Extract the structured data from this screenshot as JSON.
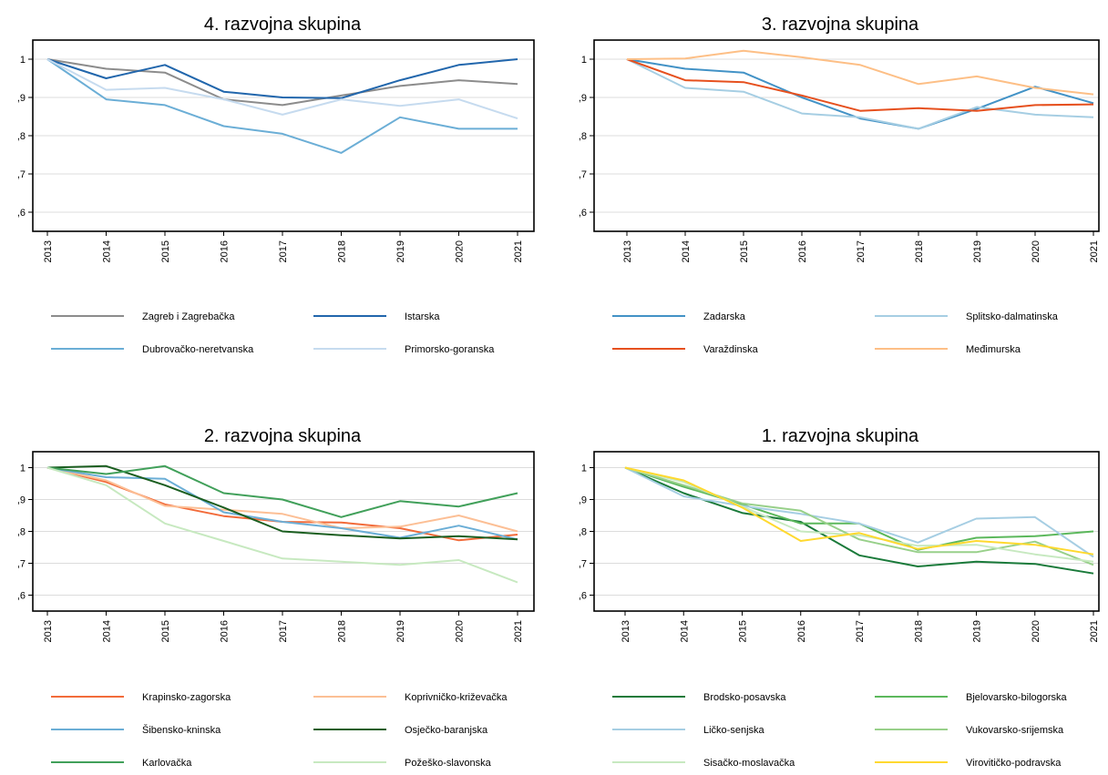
{
  "chart_data": [
    {
      "type": "line",
      "title": "4. razvojna skupina",
      "x": [
        "2013",
        "2014",
        "2015",
        "2016",
        "2017",
        "2018",
        "2019",
        "2020",
        "2021"
      ],
      "ylim": [
        0.55,
        1.05
      ],
      "yticks": [
        1,
        0.9,
        0.8,
        0.7,
        0.6
      ],
      "ytick_labels": [
        "1",
        ",9",
        ",8",
        ",7",
        ",6"
      ],
      "grid": true,
      "legend_position": "bottom",
      "series": [
        {
          "name": "Zagreb i Zagrebačka",
          "color": "#8c8c8c",
          "values": [
            1,
            0.975,
            0.965,
            0.895,
            0.88,
            0.905,
            0.93,
            0.945,
            0.935
          ]
        },
        {
          "name": "Istarska",
          "color": "#2166ac",
          "values": [
            1,
            0.95,
            0.985,
            0.915,
            0.9,
            0.898,
            0.945,
            0.985,
            1.0
          ]
        },
        {
          "name": "Dubrovačko-neretvanska",
          "color": "#6baed6",
          "values": [
            1,
            0.895,
            0.88,
            0.825,
            0.805,
            0.755,
            0.848,
            0.818,
            0.818
          ]
        },
        {
          "name": "Primorsko-goranska",
          "color": "#c6dbef",
          "values": [
            1,
            0.92,
            0.925,
            0.895,
            0.855,
            0.895,
            0.878,
            0.895,
            0.845
          ]
        }
      ]
    },
    {
      "type": "line",
      "title": "3. razvojna skupina",
      "x": [
        "2013",
        "2014",
        "2015",
        "2016",
        "2017",
        "2018",
        "2019",
        "2020",
        "2021"
      ],
      "ylim": [
        0.55,
        1.05
      ],
      "yticks": [
        1,
        0.9,
        0.8,
        0.7,
        0.6
      ],
      "ytick_labels": [
        "1",
        ",9",
        ",8",
        ",7",
        ",6"
      ],
      "grid": true,
      "legend_position": "bottom",
      "series": [
        {
          "name": "Zadarska",
          "color": "#4292c6",
          "values": [
            1,
            0.975,
            0.965,
            0.9,
            0.845,
            0.818,
            0.87,
            0.928,
            0.885
          ]
        },
        {
          "name": "Splitsko-dalmatinska",
          "color": "#a6cee3",
          "values": [
            1,
            0.925,
            0.915,
            0.858,
            0.848,
            0.818,
            0.875,
            0.855,
            0.848
          ]
        },
        {
          "name": "Varaždinska",
          "color": "#e6501e",
          "values": [
            1,
            0.945,
            0.94,
            0.905,
            0.865,
            0.872,
            0.865,
            0.88,
            0.882
          ]
        },
        {
          "name": "Međimurska",
          "color": "#fdbf86",
          "values": [
            1,
            1.002,
            1.022,
            1.005,
            0.985,
            0.935,
            0.955,
            0.925,
            0.908
          ]
        }
      ]
    },
    {
      "type": "line",
      "title": "2. razvojna skupina",
      "x": [
        "2013",
        "2014",
        "2015",
        "2016",
        "2017",
        "2018",
        "2019",
        "2020",
        "2021"
      ],
      "ylim": [
        0.55,
        1.05
      ],
      "yticks": [
        1,
        0.9,
        0.8,
        0.7,
        0.6
      ],
      "ytick_labels": [
        "1",
        ",9",
        ",8",
        ",7",
        ",6"
      ],
      "grid": true,
      "legend_position": "bottom",
      "series": [
        {
          "name": "Krapinsko-zagorska",
          "color": "#f26b3a",
          "values": [
            1,
            0.955,
            0.885,
            0.848,
            0.83,
            0.828,
            0.81,
            0.772,
            0.79
          ]
        },
        {
          "name": "Koprivničko-križevačka",
          "color": "#fcbf95",
          "values": [
            1,
            0.96,
            0.88,
            0.868,
            0.855,
            0.81,
            0.815,
            0.85,
            0.8
          ]
        },
        {
          "name": "Šibensko-kninska",
          "color": "#6baed6",
          "values": [
            1,
            0.97,
            0.965,
            0.86,
            0.83,
            0.81,
            0.78,
            0.818,
            0.775
          ]
        },
        {
          "name": "Osječko-baranjska",
          "color": "#1b5e20",
          "values": [
            1,
            1.005,
            0.945,
            0.875,
            0.8,
            0.788,
            0.778,
            0.785,
            0.775
          ]
        },
        {
          "name": "Karlovačka",
          "color": "#41a05a",
          "values": [
            1,
            0.98,
            1.005,
            0.92,
            0.9,
            0.845,
            0.895,
            0.878,
            0.92
          ]
        },
        {
          "name": "Požeško-slavonska",
          "color": "#c7e9c0",
          "values": [
            1,
            0.945,
            0.825,
            0.77,
            0.715,
            0.705,
            0.695,
            0.71,
            0.64
          ]
        }
      ]
    },
    {
      "type": "line",
      "title": "1. razvojna skupina",
      "x": [
        "2013",
        "2014",
        "2015",
        "2016",
        "2017",
        "2018",
        "2019",
        "2020",
        "2021"
      ],
      "ylim": [
        0.55,
        1.05
      ],
      "yticks": [
        1,
        0.9,
        0.8,
        0.7,
        0.6
      ],
      "ytick_labels": [
        "1",
        ",9",
        ",8",
        ",7",
        ",6"
      ],
      "grid": true,
      "legend_position": "bottom",
      "series": [
        {
          "name": "Brodsko-posavska",
          "color": "#1a7a3a",
          "values": [
            1,
            0.92,
            0.858,
            0.83,
            0.725,
            0.69,
            0.705,
            0.698,
            0.668
          ]
        },
        {
          "name": "Bjelovarsko-bilogorska",
          "color": "#5cb85c",
          "values": [
            1,
            0.94,
            0.885,
            0.825,
            0.825,
            0.742,
            0.78,
            0.785,
            0.8
          ]
        },
        {
          "name": "Ličko-senjska",
          "color": "#a6cee3",
          "values": [
            1,
            0.91,
            0.88,
            0.855,
            0.825,
            0.765,
            0.84,
            0.845,
            0.72
          ]
        },
        {
          "name": "Vukovarsko-srijemska",
          "color": "#98d08a",
          "values": [
            1,
            0.945,
            0.888,
            0.865,
            0.775,
            0.735,
            0.735,
            0.768,
            0.695
          ]
        },
        {
          "name": "Sisačko-moslavačka",
          "color": "#c7e9c0",
          "values": [
            1,
            0.955,
            0.878,
            0.8,
            0.788,
            0.755,
            0.758,
            0.728,
            0.705
          ]
        },
        {
          "name": "Virovitičko-podravska",
          "color": "#ffd92f",
          "values": [
            1,
            0.96,
            0.875,
            0.77,
            0.795,
            0.745,
            0.77,
            0.758,
            0.728
          ]
        }
      ]
    }
  ]
}
